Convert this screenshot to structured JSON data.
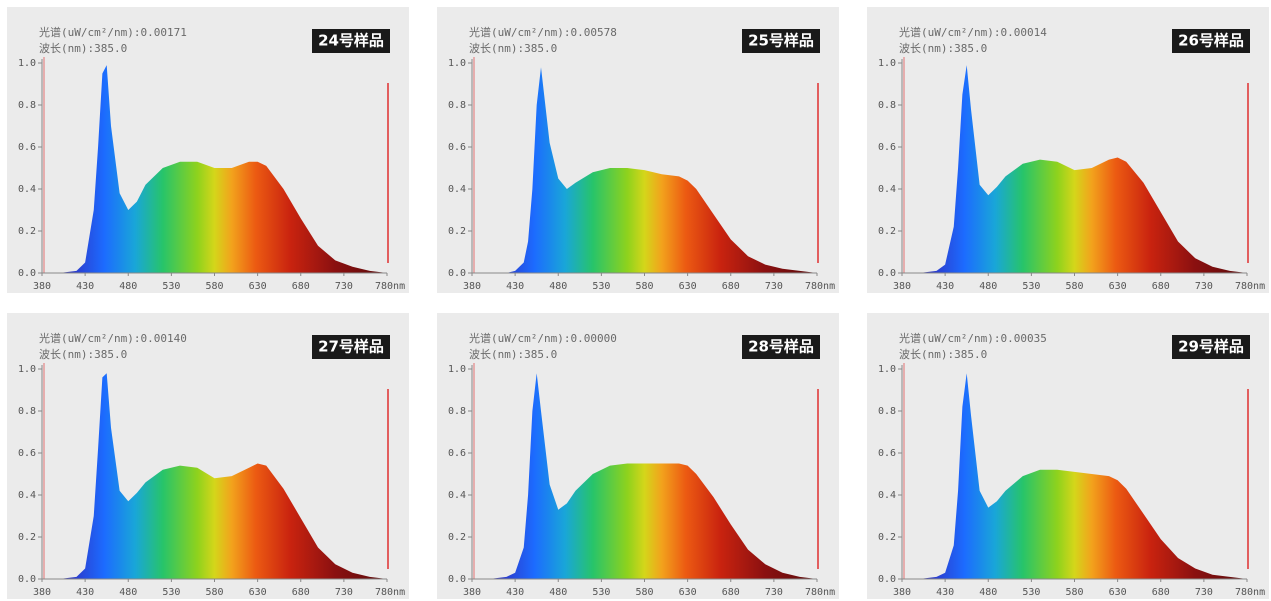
{
  "chart_data": [
    {
      "type": "area",
      "title": "24号样品",
      "spectrum_label": "光谱(uW/cm²/nm):0.00171",
      "wavelength_label": "波长(nm):385.0",
      "x": [
        380,
        400,
        420,
        430,
        440,
        445,
        450,
        455,
        460,
        470,
        480,
        490,
        500,
        520,
        540,
        560,
        580,
        600,
        620,
        630,
        640,
        660,
        680,
        700,
        720,
        740,
        760,
        780
      ],
      "values": [
        0,
        0,
        0.01,
        0.05,
        0.3,
        0.6,
        0.95,
        0.99,
        0.7,
        0.38,
        0.3,
        0.34,
        0.42,
        0.5,
        0.53,
        0.53,
        0.5,
        0.5,
        0.53,
        0.53,
        0.51,
        0.4,
        0.26,
        0.13,
        0.06,
        0.03,
        0.01,
        0
      ],
      "xlim": [
        380,
        780
      ],
      "ylim": [
        0,
        1.0
      ],
      "xticks": [
        380,
        430,
        480,
        530,
        580,
        630,
        680,
        730,
        {
          "value": 780,
          "label": "780nm"
        }
      ],
      "yticks": [
        {
          "value": 0,
          "label": "0.0"
        },
        0.2,
        0.4,
        0.6,
        0.8,
        {
          "value": 1,
          "label": "1.0"
        }
      ]
    },
    {
      "type": "area",
      "title": "25号样品",
      "spectrum_label": "光谱(uW/cm²/nm):0.00578",
      "wavelength_label": "波长(nm):385.0",
      "x": [
        380,
        400,
        420,
        430,
        440,
        445,
        450,
        455,
        460,
        470,
        480,
        490,
        500,
        520,
        540,
        560,
        580,
        600,
        620,
        630,
        640,
        660,
        680,
        700,
        720,
        740,
        760,
        780
      ],
      "values": [
        0,
        0,
        0,
        0.01,
        0.05,
        0.15,
        0.4,
        0.8,
        0.98,
        0.62,
        0.45,
        0.4,
        0.43,
        0.48,
        0.5,
        0.5,
        0.49,
        0.47,
        0.46,
        0.44,
        0.4,
        0.28,
        0.16,
        0.08,
        0.04,
        0.02,
        0.01,
        0
      ],
      "xlim": [
        380,
        780
      ],
      "ylim": [
        0,
        1.0
      ],
      "xticks": [
        380,
        430,
        480,
        530,
        580,
        630,
        680,
        730,
        {
          "value": 780,
          "label": "780nm"
        }
      ],
      "yticks": [
        {
          "value": 0,
          "label": "0.0"
        },
        0.2,
        0.4,
        0.6,
        0.8,
        {
          "value": 1,
          "label": "1.0"
        }
      ]
    },
    {
      "type": "area",
      "title": "26号样品",
      "spectrum_label": "光谱(uW/cm²/nm):0.00014",
      "wavelength_label": "波长(nm):385.0",
      "x": [
        380,
        400,
        420,
        430,
        440,
        445,
        450,
        455,
        460,
        470,
        480,
        490,
        500,
        520,
        540,
        560,
        580,
        600,
        620,
        630,
        640,
        660,
        680,
        700,
        720,
        740,
        760,
        780
      ],
      "values": [
        0,
        0,
        0.01,
        0.04,
        0.22,
        0.5,
        0.85,
        0.99,
        0.78,
        0.42,
        0.37,
        0.41,
        0.46,
        0.52,
        0.54,
        0.53,
        0.49,
        0.5,
        0.54,
        0.55,
        0.53,
        0.43,
        0.29,
        0.15,
        0.07,
        0.03,
        0.01,
        0
      ],
      "xlim": [
        380,
        780
      ],
      "ylim": [
        0,
        1.0
      ],
      "xticks": [
        380,
        430,
        480,
        530,
        580,
        630,
        680,
        730,
        {
          "value": 780,
          "label": "780nm"
        }
      ],
      "yticks": [
        {
          "value": 0,
          "label": "0.0"
        },
        0.2,
        0.4,
        0.6,
        0.8,
        {
          "value": 1,
          "label": "1.0"
        }
      ]
    },
    {
      "type": "area",
      "title": "27号样品",
      "spectrum_label": "光谱(uW/cm²/nm):0.00140",
      "wavelength_label": "波长(nm):385.0",
      "x": [
        380,
        400,
        420,
        430,
        440,
        445,
        450,
        455,
        460,
        470,
        480,
        490,
        500,
        520,
        540,
        560,
        580,
        600,
        620,
        630,
        640,
        660,
        680,
        700,
        720,
        740,
        760,
        780
      ],
      "values": [
        0,
        0,
        0.01,
        0.05,
        0.3,
        0.62,
        0.96,
        0.98,
        0.72,
        0.42,
        0.37,
        0.41,
        0.46,
        0.52,
        0.54,
        0.53,
        0.48,
        0.49,
        0.53,
        0.55,
        0.54,
        0.43,
        0.29,
        0.15,
        0.07,
        0.03,
        0.01,
        0
      ],
      "xlim": [
        380,
        780
      ],
      "ylim": [
        0,
        1.0
      ],
      "xticks": [
        380,
        430,
        480,
        530,
        580,
        630,
        680,
        730,
        {
          "value": 780,
          "label": "780nm"
        }
      ],
      "yticks": [
        {
          "value": 0,
          "label": "0.0"
        },
        0.2,
        0.4,
        0.6,
        0.8,
        {
          "value": 1,
          "label": "1.0"
        }
      ]
    },
    {
      "type": "area",
      "title": "28号样品",
      "spectrum_label": "光谱(uW/cm²/nm):0.00000",
      "wavelength_label": "波长(nm):385.0",
      "x": [
        380,
        400,
        420,
        430,
        440,
        445,
        450,
        455,
        460,
        470,
        480,
        490,
        500,
        520,
        540,
        560,
        580,
        600,
        620,
        630,
        640,
        660,
        680,
        700,
        720,
        740,
        760,
        780
      ],
      "values": [
        0,
        0,
        0.01,
        0.03,
        0.15,
        0.4,
        0.8,
        0.98,
        0.8,
        0.45,
        0.33,
        0.36,
        0.42,
        0.5,
        0.54,
        0.55,
        0.55,
        0.55,
        0.55,
        0.54,
        0.5,
        0.39,
        0.26,
        0.14,
        0.07,
        0.03,
        0.01,
        0
      ],
      "xlim": [
        380,
        780
      ],
      "ylim": [
        0,
        1.0
      ],
      "xticks": [
        380,
        430,
        480,
        530,
        580,
        630,
        680,
        730,
        {
          "value": 780,
          "label": "780nm"
        }
      ],
      "yticks": [
        {
          "value": 0,
          "label": "0.0"
        },
        0.2,
        0.4,
        0.6,
        0.8,
        {
          "value": 1,
          "label": "1.0"
        }
      ]
    },
    {
      "type": "area",
      "title": "29号样品",
      "spectrum_label": "光谱(uW/cm²/nm):0.00035",
      "wavelength_label": "波长(nm):385.0",
      "x": [
        380,
        400,
        420,
        430,
        440,
        445,
        450,
        455,
        460,
        470,
        480,
        490,
        500,
        520,
        540,
        560,
        580,
        600,
        620,
        630,
        640,
        660,
        680,
        700,
        720,
        740,
        760,
        780
      ],
      "values": [
        0,
        0,
        0.01,
        0.03,
        0.16,
        0.42,
        0.82,
        0.98,
        0.78,
        0.42,
        0.34,
        0.37,
        0.42,
        0.49,
        0.52,
        0.52,
        0.51,
        0.5,
        0.49,
        0.47,
        0.43,
        0.31,
        0.19,
        0.1,
        0.05,
        0.02,
        0.01,
        0
      ],
      "xlim": [
        380,
        780
      ],
      "ylim": [
        0,
        1.0
      ],
      "xticks": [
        380,
        430,
        480,
        530,
        580,
        630,
        680,
        730,
        {
          "value": 780,
          "label": "780nm"
        }
      ],
      "yticks": [
        {
          "value": 0,
          "label": "0.0"
        },
        0.2,
        0.4,
        0.6,
        0.8,
        {
          "value": 1,
          "label": "1.0"
        }
      ]
    }
  ]
}
